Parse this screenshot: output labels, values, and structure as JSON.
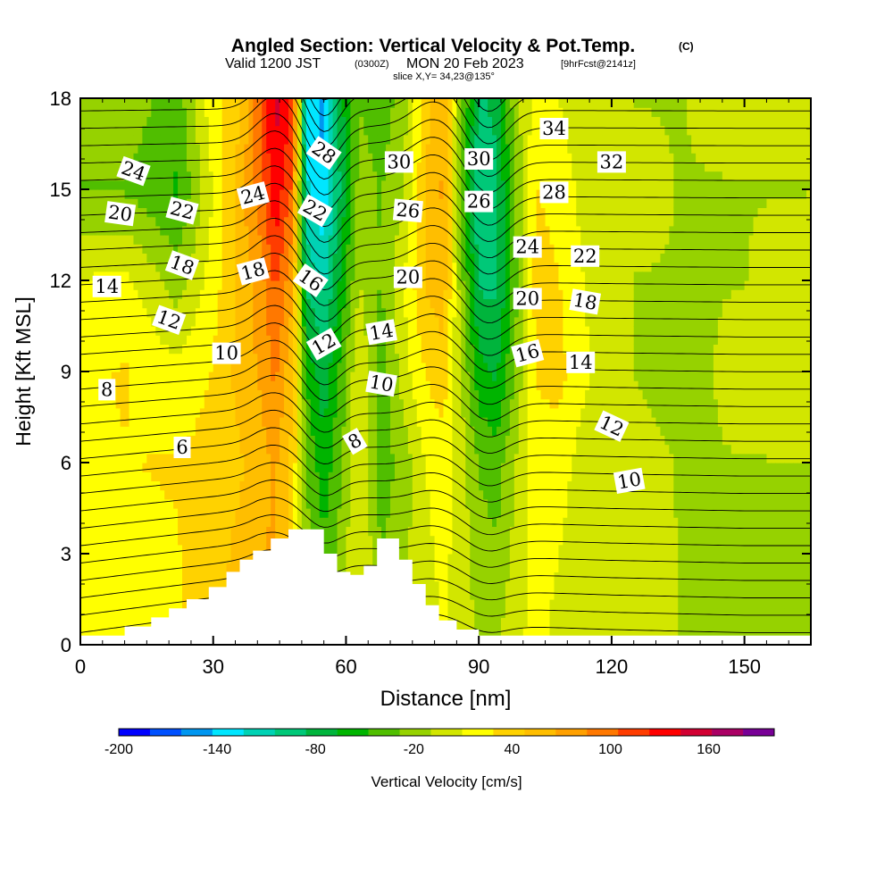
{
  "chart_data": {
    "type": "heatmap",
    "title": "Angled Section: Vertical Velocity & Pot.Temp.",
    "title_units": "(C)",
    "subtitle_prefix": "Valid 1200 JST",
    "subtitle_zulu": "(0300Z)",
    "subtitle_date": "MON 20 Feb 2023",
    "subtitle_run": "[9hrFcst@2141z]",
    "slice_label": "slice X,Y= 34,23@135°",
    "xlabel": "Distance [nm]",
    "ylabel": "Height [Kft MSL]",
    "xlim": [
      0,
      165
    ],
    "ylim": [
      0,
      18
    ],
    "xticks": [
      "0",
      "30",
      "60",
      "90",
      "120",
      "150"
    ],
    "yticks": [
      "0",
      "3",
      "6",
      "9",
      "12",
      "15",
      "18"
    ],
    "grid": false,
    "colorbar": {
      "label": "Vertical Velocity [cm/s]",
      "range": [
        -200,
        200
      ],
      "tick_labels": [
        "-200",
        "-140",
        "-80",
        "-20",
        "40",
        "100",
        "160"
      ],
      "tick_values": [
        -200,
        -140,
        -80,
        -20,
        40,
        100,
        160
      ],
      "colors": [
        "#0000ff",
        "#0050ff",
        "#0096f0",
        "#00e6ff",
        "#00d2b4",
        "#00c878",
        "#00b43c",
        "#00b400",
        "#50be00",
        "#96d200",
        "#d2e600",
        "#ffff00",
        "#ffd200",
        "#ffbe00",
        "#ffa000",
        "#ff7800",
        "#ff3c00",
        "#ff0000",
        "#d20032",
        "#aa0064",
        "#780096"
      ]
    },
    "terrain": {
      "x": [
        0,
        10,
        16,
        20,
        24,
        29,
        33,
        36,
        39,
        43,
        47,
        52,
        55,
        58,
        61,
        64,
        67,
        70,
        72,
        75,
        78,
        81,
        85,
        90,
        165
      ],
      "height": [
        0.3,
        0.6,
        0.9,
        1.2,
        1.5,
        1.9,
        2.4,
        2.8,
        3.1,
        3.5,
        3.8,
        3.8,
        3.0,
        2.4,
        2.3,
        2.6,
        3.5,
        3.5,
        2.8,
        2.0,
        1.3,
        0.8,
        0.5,
        0.3,
        0.3
      ]
    },
    "velocity_columns": [
      {
        "x": 0,
        "profile": [
          [
            0,
            20
          ],
          [
            6,
            25
          ],
          [
            9,
            25
          ],
          [
            12,
            10
          ],
          [
            15,
            -30
          ],
          [
            18,
            -10
          ]
        ]
      },
      {
        "x": 10,
        "profile": [
          [
            0,
            20
          ],
          [
            6,
            28
          ],
          [
            9,
            30
          ],
          [
            12,
            15
          ],
          [
            15,
            -30
          ],
          [
            18,
            -15
          ]
        ]
      },
      {
        "x": 22,
        "profile": [
          [
            0,
            25
          ],
          [
            6,
            30
          ],
          [
            9,
            15
          ],
          [
            12,
            -20
          ],
          [
            15,
            -50
          ],
          [
            18,
            -40
          ]
        ]
      },
      {
        "x": 30,
        "profile": [
          [
            0,
            45
          ],
          [
            6,
            35
          ],
          [
            9,
            30
          ],
          [
            12,
            20
          ],
          [
            15,
            10
          ],
          [
            18,
            25
          ]
        ]
      },
      {
        "x": 36,
        "profile": [
          [
            0,
            60
          ],
          [
            6,
            45
          ],
          [
            9,
            55
          ],
          [
            12,
            50
          ],
          [
            15,
            60
          ],
          [
            18,
            40
          ]
        ]
      },
      {
        "x": 41,
        "profile": [
          [
            0,
            70
          ],
          [
            6,
            60
          ],
          [
            9,
            70
          ],
          [
            12,
            80
          ],
          [
            15,
            100
          ],
          [
            18,
            110
          ]
        ]
      },
      {
        "x": 44,
        "profile": [
          [
            0,
            70
          ],
          [
            6,
            70
          ],
          [
            9,
            90
          ],
          [
            12,
            110
          ],
          [
            15,
            140
          ],
          [
            18,
            150
          ]
        ]
      },
      {
        "x": 48,
        "profile": [
          [
            0,
            30
          ],
          [
            6,
            40
          ],
          [
            9,
            50
          ],
          [
            12,
            70
          ],
          [
            15,
            100
          ],
          [
            18,
            120
          ]
        ]
      },
      {
        "x": 51,
        "profile": [
          [
            0,
            -10
          ],
          [
            6,
            -30
          ],
          [
            9,
            -50
          ],
          [
            12,
            -90
          ],
          [
            15,
            -120
          ],
          [
            18,
            -130
          ]
        ]
      },
      {
        "x": 55,
        "profile": [
          [
            0,
            -30
          ],
          [
            6,
            -60
          ],
          [
            9,
            -80
          ],
          [
            12,
            -110
          ],
          [
            15,
            -140
          ],
          [
            18,
            -150
          ]
        ]
      },
      {
        "x": 59,
        "profile": [
          [
            0,
            -10
          ],
          [
            6,
            -30
          ],
          [
            9,
            -40
          ],
          [
            12,
            -60
          ],
          [
            15,
            -80
          ],
          [
            18,
            -70
          ]
        ]
      },
      {
        "x": 63,
        "profile": [
          [
            0,
            10
          ],
          [
            6,
            15
          ],
          [
            9,
            10
          ],
          [
            12,
            -10
          ],
          [
            15,
            -20
          ],
          [
            18,
            -30
          ]
        ]
      },
      {
        "x": 68,
        "profile": [
          [
            0,
            -20
          ],
          [
            6,
            -40
          ],
          [
            9,
            -40
          ],
          [
            12,
            -30
          ],
          [
            15,
            -30
          ],
          [
            18,
            -40
          ]
        ]
      },
      {
        "x": 73,
        "profile": [
          [
            0,
            -10
          ],
          [
            6,
            -20
          ],
          [
            9,
            0
          ],
          [
            12,
            10
          ],
          [
            15,
            -10
          ],
          [
            18,
            -20
          ]
        ]
      },
      {
        "x": 78,
        "profile": [
          [
            0,
            0
          ],
          [
            6,
            10
          ],
          [
            9,
            30
          ],
          [
            12,
            50
          ],
          [
            15,
            50
          ],
          [
            18,
            40
          ]
        ]
      },
      {
        "x": 82,
        "profile": [
          [
            0,
            10
          ],
          [
            6,
            20
          ],
          [
            9,
            40
          ],
          [
            12,
            60
          ],
          [
            15,
            70
          ],
          [
            18,
            60
          ]
        ]
      },
      {
        "x": 86,
        "profile": [
          [
            0,
            0
          ],
          [
            6,
            0
          ],
          [
            9,
            -10
          ],
          [
            12,
            -20
          ],
          [
            15,
            -30
          ],
          [
            18,
            -20
          ]
        ]
      },
      {
        "x": 90,
        "profile": [
          [
            0,
            -10
          ],
          [
            6,
            -30
          ],
          [
            9,
            -60
          ],
          [
            12,
            -90
          ],
          [
            15,
            -100
          ],
          [
            18,
            -90
          ]
        ]
      },
      {
        "x": 94,
        "profile": [
          [
            0,
            -10
          ],
          [
            6,
            -40
          ],
          [
            9,
            -70
          ],
          [
            12,
            -90
          ],
          [
            15,
            -90
          ],
          [
            18,
            -80
          ]
        ]
      },
      {
        "x": 98,
        "profile": [
          [
            0,
            0
          ],
          [
            6,
            -10
          ],
          [
            9,
            -30
          ],
          [
            12,
            -40
          ],
          [
            15,
            -30
          ],
          [
            18,
            -20
          ]
        ]
      },
      {
        "x": 103,
        "profile": [
          [
            0,
            20
          ],
          [
            6,
            20
          ],
          [
            9,
            30
          ],
          [
            12,
            40
          ],
          [
            15,
            30
          ],
          [
            18,
            20
          ]
        ]
      },
      {
        "x": 108,
        "profile": [
          [
            0,
            0
          ],
          [
            6,
            20
          ],
          [
            9,
            35
          ],
          [
            12,
            30
          ],
          [
            15,
            20
          ],
          [
            18,
            10
          ]
        ]
      },
      {
        "x": 115,
        "profile": [
          [
            0,
            -10
          ],
          [
            6,
            -5
          ],
          [
            9,
            10
          ],
          [
            12,
            5
          ],
          [
            15,
            0
          ],
          [
            18,
            -5
          ]
        ]
      },
      {
        "x": 125,
        "profile": [
          [
            0,
            10
          ],
          [
            6,
            -5
          ],
          [
            9,
            -10
          ],
          [
            12,
            -10
          ],
          [
            15,
            -5
          ],
          [
            18,
            -10
          ]
        ]
      },
      {
        "x": 135,
        "profile": [
          [
            0,
            -10
          ],
          [
            6,
            -10
          ],
          [
            9,
            -15
          ],
          [
            12,
            -10
          ],
          [
            15,
            -10
          ],
          [
            18,
            -10
          ]
        ]
      },
      {
        "x": 150,
        "profile": [
          [
            0,
            -20
          ],
          [
            6,
            -10
          ],
          [
            9,
            -5
          ],
          [
            12,
            -10
          ],
          [
            15,
            -10
          ],
          [
            18,
            -5
          ]
        ]
      },
      {
        "x": 165,
        "profile": [
          [
            0,
            -10
          ],
          [
            6,
            -10
          ],
          [
            9,
            10
          ],
          [
            12,
            0
          ],
          [
            15,
            -10
          ],
          [
            18,
            -5
          ]
        ]
      }
    ],
    "theta_levels": [
      2,
      3,
      4,
      5,
      6,
      7,
      8,
      9,
      10,
      11,
      12,
      13,
      14,
      15,
      16,
      17,
      18,
      19,
      20,
      21,
      22,
      23,
      24,
      25,
      26,
      27,
      28,
      29,
      30,
      31,
      32,
      33,
      34,
      35
    ],
    "theta_base_height": [
      [
        0,
        0.4
      ],
      [
        20,
        0.8
      ],
      [
        40,
        1.2
      ],
      [
        60,
        1.0
      ],
      [
        80,
        0.8
      ],
      [
        100,
        0.6
      ],
      [
        120,
        0.5
      ],
      [
        150,
        0.4
      ],
      [
        165,
        0.4
      ]
    ],
    "contour_labels": [
      {
        "text": "24",
        "x": 12,
        "y": 15.6,
        "angle": 20
      },
      {
        "text": "20",
        "x": 9,
        "y": 14.2,
        "angle": 8
      },
      {
        "text": "22",
        "x": 23,
        "y": 14.3,
        "angle": 15
      },
      {
        "text": "24",
        "x": 39,
        "y": 14.8,
        "angle": -15
      },
      {
        "text": "28",
        "x": 55,
        "y": 16.2,
        "angle": 35
      },
      {
        "text": "30",
        "x": 72,
        "y": 15.9,
        "angle": 0
      },
      {
        "text": "30",
        "x": 90,
        "y": 16.0,
        "angle": 0
      },
      {
        "text": "34",
        "x": 107,
        "y": 17.0,
        "angle": 0
      },
      {
        "text": "32",
        "x": 120,
        "y": 15.9,
        "angle": 0
      },
      {
        "text": "28",
        "x": 107,
        "y": 14.9,
        "angle": 0
      },
      {
        "text": "26",
        "x": 74,
        "y": 14.3,
        "angle": 5
      },
      {
        "text": "26",
        "x": 90,
        "y": 14.6,
        "angle": 0
      },
      {
        "text": "22",
        "x": 53,
        "y": 14.3,
        "angle": 30
      },
      {
        "text": "24",
        "x": 101,
        "y": 13.1,
        "angle": 0
      },
      {
        "text": "22",
        "x": 114,
        "y": 12.8,
        "angle": 0
      },
      {
        "text": "18",
        "x": 23,
        "y": 12.5,
        "angle": 20
      },
      {
        "text": "18",
        "x": 39,
        "y": 12.3,
        "angle": -15
      },
      {
        "text": "16",
        "x": 52,
        "y": 12.0,
        "angle": 35
      },
      {
        "text": "20",
        "x": 74,
        "y": 12.1,
        "angle": 0
      },
      {
        "text": "14",
        "x": 6,
        "y": 11.8,
        "angle": 0
      },
      {
        "text": "20",
        "x": 101,
        "y": 11.4,
        "angle": 0
      },
      {
        "text": "18",
        "x": 114,
        "y": 11.3,
        "angle": 10
      },
      {
        "text": "12",
        "x": 20,
        "y": 10.7,
        "angle": 20
      },
      {
        "text": "12",
        "x": 55,
        "y": 9.9,
        "angle": -30
      },
      {
        "text": "14",
        "x": 68,
        "y": 10.3,
        "angle": -10
      },
      {
        "text": "10",
        "x": 33,
        "y": 9.6,
        "angle": 0
      },
      {
        "text": "16",
        "x": 101,
        "y": 9.6,
        "angle": -15
      },
      {
        "text": "14",
        "x": 113,
        "y": 9.3,
        "angle": 0
      },
      {
        "text": "10",
        "x": 68,
        "y": 8.6,
        "angle": 10
      },
      {
        "text": "8",
        "x": 6,
        "y": 8.4,
        "angle": 0
      },
      {
        "text": "8",
        "x": 62,
        "y": 6.7,
        "angle": -30
      },
      {
        "text": "12",
        "x": 120,
        "y": 7.2,
        "angle": 25
      },
      {
        "text": "6",
        "x": 23,
        "y": 6.5,
        "angle": 0
      },
      {
        "text": "10",
        "x": 124,
        "y": 5.4,
        "angle": -10
      }
    ]
  }
}
